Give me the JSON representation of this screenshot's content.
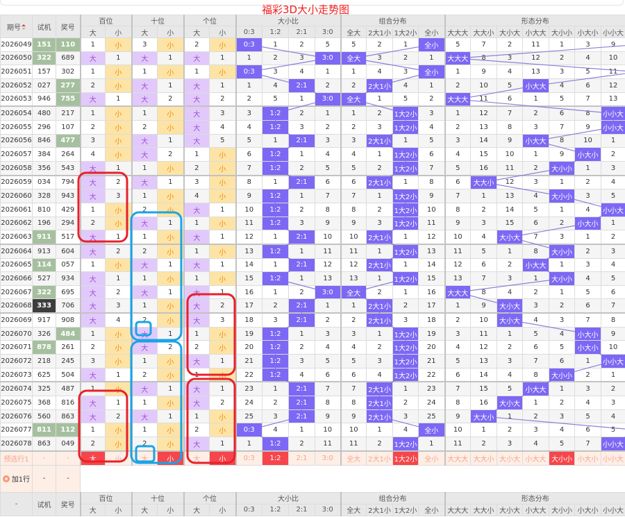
{
  "title": "福彩3D大小走势图",
  "colors": {
    "hit": "#7c68f4",
    "big_bg": "#e2c9fb",
    "small_bg": "#fde4a6",
    "repeat": "#a6c09f",
    "triple": "#3d3d3d",
    "selected": "#f6464b",
    "trend_line": "#8a80d8",
    "annot_red": "#e8202a",
    "annot_blue": "#1aa3e8"
  },
  "header": {
    "period": "期号",
    "sort_icon": "sort-asc-icon",
    "test": "试机",
    "draw": "奖号",
    "groups": [
      "百位",
      "十位",
      "个位",
      "大小比",
      "组合分布",
      "形态分布"
    ],
    "pos_sub": [
      "大",
      "小",
      "大",
      "小",
      "大",
      "小"
    ],
    "ratio_sub": [
      "0:3",
      "1:2",
      "2:1",
      "3:0"
    ],
    "combo_sub": [
      "全大",
      "2大1小",
      "1大2小",
      "全小"
    ],
    "form_sub": [
      "大大大",
      "大大小",
      "大小大",
      "小大大",
      "大小小",
      "小大小",
      "小小大"
    ]
  },
  "rows": [
    {
      "period": "2026049",
      "test": "151",
      "test_style": "repeat",
      "draw": "110",
      "draw_style": "repeat",
      "pos": [
        "1",
        "小",
        "3",
        "小",
        "2",
        "小"
      ],
      "ratio": [
        "0:3",
        "1",
        "2",
        "5"
      ],
      "combo": [
        "5",
        "2",
        "1",
        "全小"
      ],
      "form": [
        "5",
        "7",
        "2",
        "11",
        "1",
        "3",
        "9"
      ]
    },
    {
      "period": "2026050",
      "test": "322",
      "test_style": "repeat",
      "draw": "689",
      "draw_style": "",
      "pos": [
        "大",
        "1",
        "大",
        "1",
        "大",
        "1"
      ],
      "ratio": [
        "1",
        "2",
        "3",
        "3:0"
      ],
      "combo": [
        "全大",
        "3",
        "2",
        "1"
      ],
      "form": [
        "大大大",
        "8",
        "3",
        "12",
        "2",
        "4",
        "10"
      ]
    },
    {
      "period": "2026051",
      "test": "157",
      "test_style": "",
      "draw": "302",
      "draw_style": "",
      "pos": [
        "1",
        "小",
        "1",
        "小",
        "1",
        "小"
      ],
      "ratio": [
        "0:3",
        "3",
        "4",
        "1"
      ],
      "combo": [
        "1",
        "4",
        "3",
        "全小"
      ],
      "form": [
        "1",
        "9",
        "4",
        "13",
        "3",
        "5",
        "11"
      ]
    },
    {
      "period": "2026052",
      "test": "027",
      "test_style": "",
      "draw": "277",
      "draw_style": "repeat",
      "pos": [
        "2",
        "小",
        "大",
        "1",
        "大",
        "1"
      ],
      "ratio": [
        "1",
        "4",
        "2:1",
        "2"
      ],
      "combo": [
        "2",
        "2大1小",
        "4",
        "1"
      ],
      "form": [
        "2",
        "10",
        "5",
        "小大大",
        "4",
        "6",
        "12"
      ]
    },
    {
      "period": "2026053",
      "test": "946",
      "test_style": "",
      "draw": "755",
      "draw_style": "repeat",
      "pos": [
        "大",
        "1",
        "大",
        "2",
        "大",
        "2"
      ],
      "ratio": [
        "2",
        "5",
        "1",
        "3:0"
      ],
      "combo": [
        "全大",
        "1",
        "5",
        "2"
      ],
      "form": [
        "大大大",
        "11",
        "6",
        "1",
        "5",
        "7",
        "13"
      ]
    },
    {
      "period": "2026054",
      "test": "480",
      "test_style": "",
      "draw": "217",
      "draw_style": "",
      "pos": [
        "1",
        "小",
        "1",
        "小",
        "大",
        "3"
      ],
      "ratio": [
        "3",
        "1:2",
        "2",
        "1"
      ],
      "combo": [
        "1",
        "2",
        "1大2小",
        "3"
      ],
      "form": [
        "1",
        "12",
        "7",
        "2",
        "6",
        "8",
        "小小大"
      ]
    },
    {
      "period": "2026055",
      "test": "296",
      "test_style": "",
      "draw": "107",
      "draw_style": "",
      "pos": [
        "2",
        "小",
        "2",
        "小",
        "大",
        "4"
      ],
      "ratio": [
        "4",
        "1:2",
        "3",
        "2"
      ],
      "combo": [
        "2",
        "3",
        "1大2小",
        "4"
      ],
      "form": [
        "2",
        "13",
        "8",
        "3",
        "7",
        "9",
        "小小大"
      ]
    },
    {
      "period": "2026056",
      "test": "846",
      "test_style": "",
      "draw": "477",
      "draw_style": "repeat",
      "pos": [
        "3",
        "小",
        "大",
        "1",
        "大",
        "5"
      ],
      "ratio": [
        "5",
        "1",
        "2:1",
        "3"
      ],
      "combo": [
        "3",
        "2大1小",
        "1",
        "5"
      ],
      "form": [
        "3",
        "14",
        "9",
        "小大大",
        "8",
        "10",
        "1"
      ]
    },
    {
      "period": "2026057",
      "test": "384",
      "test_style": "",
      "draw": "264",
      "draw_style": "",
      "pos": [
        "4",
        "小",
        "大",
        "2",
        "1",
        "小"
      ],
      "ratio": [
        "6",
        "1:2",
        "1",
        "4"
      ],
      "combo": [
        "4",
        "1",
        "1大2小",
        "6"
      ],
      "form": [
        "4",
        "15",
        "10",
        "1",
        "9",
        "小大小",
        "2"
      ]
    },
    {
      "period": "2026058",
      "test": "356",
      "test_style": "",
      "draw": "543",
      "draw_style": "",
      "pos": [
        "大",
        "1",
        "1",
        "小",
        "2",
        "小"
      ],
      "ratio": [
        "7",
        "1:2",
        "2",
        "5"
      ],
      "combo": [
        "5",
        "2",
        "1大2小",
        "7"
      ],
      "form": [
        "5",
        "16",
        "11",
        "2",
        "大小小",
        "1",
        "3"
      ]
    },
    {
      "period": "2026059",
      "test": "034",
      "test_style": "",
      "draw": "794",
      "draw_style": "",
      "pos": [
        "大",
        "2",
        "大",
        "1",
        "3",
        "小"
      ],
      "ratio": [
        "8",
        "1",
        "2:1",
        "6"
      ],
      "combo": [
        "6",
        "2大1小",
        "1",
        "8"
      ],
      "form": [
        "6",
        "大大小",
        "12",
        "3",
        "1",
        "2",
        "4"
      ]
    },
    {
      "period": "2026060",
      "test": "328",
      "test_style": "",
      "draw": "943",
      "draw_style": "",
      "pos": [
        "大",
        "3",
        "1",
        "小",
        "4",
        "小"
      ],
      "ratio": [
        "9",
        "1:2",
        "1",
        "7"
      ],
      "combo": [
        "7",
        "1",
        "1大2小",
        "9"
      ],
      "form": [
        "7",
        "1",
        "13",
        "4",
        "大小小",
        "3",
        "5"
      ]
    },
    {
      "period": "2026061",
      "test": "810",
      "test_style": "",
      "draw": "429",
      "draw_style": "",
      "pos": [
        "1",
        "小",
        "2",
        "小",
        "大",
        "1"
      ],
      "ratio": [
        "10",
        "1:2",
        "2",
        "8"
      ],
      "combo": [
        "8",
        "2",
        "1大2小",
        "10"
      ],
      "form": [
        "8",
        "2",
        "14",
        "5",
        "1",
        "4",
        "小小大"
      ]
    },
    {
      "period": "2026062",
      "test": "196",
      "test_style": "",
      "draw": "294",
      "draw_style": "",
      "pos": [
        "2",
        "小",
        "大",
        "1",
        "1",
        "小"
      ],
      "ratio": [
        "11",
        "1:2",
        "3",
        "9"
      ],
      "combo": [
        "9",
        "3",
        "1大2小",
        "11"
      ],
      "form": [
        "9",
        "3",
        "15",
        "6",
        "2",
        "小大小",
        "1"
      ]
    },
    {
      "period": "2026063",
      "test": "911",
      "test_style": "repeat",
      "draw": "517",
      "draw_style": "",
      "pos": [
        "大",
        "1",
        "1",
        "小",
        "大",
        "1"
      ],
      "ratio": [
        "12",
        "1",
        "2:1",
        "10"
      ],
      "combo": [
        "10",
        "2大1小",
        "1",
        "12"
      ],
      "form": [
        "10",
        "4",
        "大小大",
        "7",
        "3",
        "1",
        "2"
      ]
    },
    {
      "period": "2026064",
      "test": "913",
      "test_style": "",
      "draw": "604",
      "draw_style": "",
      "pos": [
        "大",
        "2",
        "2",
        "小",
        "1",
        "小"
      ],
      "ratio": [
        "13",
        "1:2",
        "1",
        "11"
      ],
      "combo": [
        "11",
        "1",
        "1大2小",
        "13"
      ],
      "form": [
        "11",
        "5",
        "1",
        "8",
        "大小小",
        "2",
        "3"
      ]
    },
    {
      "period": "2026065",
      "test": "114",
      "test_style": "repeat",
      "draw": "057",
      "draw_style": "",
      "pos": [
        "1",
        "小",
        "大",
        "1",
        "大",
        "1"
      ],
      "ratio": [
        "14",
        "1",
        "2:1",
        "12"
      ],
      "combo": [
        "12",
        "2大1小",
        "1",
        "14"
      ],
      "form": [
        "12",
        "6",
        "2",
        "小大大",
        "1",
        "3",
        "4"
      ]
    },
    {
      "period": "2026066",
      "test": "527",
      "test_style": "",
      "draw": "934",
      "draw_style": "",
      "pos": [
        "大",
        "1",
        "1",
        "小",
        "1",
        "小"
      ],
      "ratio": [
        "15",
        "1:2",
        "1",
        "13"
      ],
      "combo": [
        "13",
        "1",
        "1大2小",
        "15"
      ],
      "form": [
        "13",
        "7",
        "3",
        "1",
        "大小小",
        "4",
        "5"
      ]
    },
    {
      "period": "2026067",
      "test": "322",
      "test_style": "repeat",
      "draw": "695",
      "draw_style": "",
      "pos": [
        "大",
        "2",
        "大",
        "1",
        "大",
        "1"
      ],
      "ratio": [
        "16",
        "1",
        "2",
        "3:0"
      ],
      "combo": [
        "全大",
        "2",
        "1",
        "16"
      ],
      "form": [
        "大大大",
        "8",
        "4",
        "2",
        "1",
        "5",
        "6"
      ]
    },
    {
      "period": "2026068",
      "test": "333",
      "test_style": "triple",
      "draw": "706",
      "draw_style": "",
      "pos": [
        "大",
        "3",
        "1",
        "小",
        "大",
        "2"
      ],
      "ratio": [
        "17",
        "2",
        "2:1",
        "1"
      ],
      "combo": [
        "1",
        "2大1小",
        "2",
        "17"
      ],
      "form": [
        "1",
        "9",
        "大小大",
        "3",
        "2",
        "6",
        "7"
      ]
    },
    {
      "period": "2026069",
      "test": "917",
      "test_style": "",
      "draw": "908",
      "draw_style": "",
      "pos": [
        "大",
        "4",
        "2",
        "小",
        "大",
        "3"
      ],
      "ratio": [
        "18",
        "3",
        "2:1",
        "2"
      ],
      "combo": [
        "2",
        "2大1小",
        "3",
        "18"
      ],
      "form": [
        "2",
        "10",
        "大小大",
        "4",
        "3",
        "7",
        "8"
      ]
    },
    {
      "period": "2026070",
      "test": "326",
      "test_style": "",
      "draw": "484",
      "draw_style": "repeat",
      "pos": [
        "1",
        "小",
        "大",
        "1",
        "1",
        "小"
      ],
      "ratio": [
        "19",
        "1:2",
        "1",
        "3"
      ],
      "combo": [
        "3",
        "1",
        "1大2小",
        "19"
      ],
      "form": [
        "3",
        "11",
        "1",
        "5",
        "4",
        "小大小",
        "9"
      ]
    },
    {
      "period": "2026071",
      "test": "878",
      "test_style": "repeat",
      "draw": "261",
      "draw_style": "",
      "pos": [
        "2",
        "小",
        "大",
        "2",
        "2",
        "小"
      ],
      "ratio": [
        "20",
        "1:2",
        "2",
        "4"
      ],
      "combo": [
        "4",
        "2",
        "1大2小",
        "20"
      ],
      "form": [
        "4",
        "12",
        "2",
        "6",
        "5",
        "小大小",
        "10"
      ]
    },
    {
      "period": "2026072",
      "test": "218",
      "test_style": "",
      "draw": "245",
      "draw_style": "",
      "pos": [
        "3",
        "小",
        "1",
        "小",
        "大",
        "1"
      ],
      "ratio": [
        "21",
        "1:2",
        "3",
        "5"
      ],
      "combo": [
        "5",
        "3",
        "1大2小",
        "21"
      ],
      "form": [
        "5",
        "13",
        "3",
        "7",
        "6",
        "1",
        "小小大"
      ]
    },
    {
      "period": "2026073",
      "test": "625",
      "test_style": "",
      "draw": "504",
      "draw_style": "",
      "pos": [
        "大",
        "1",
        "2",
        "小",
        "1",
        "小"
      ],
      "ratio": [
        "22",
        "1:2",
        "4",
        "6"
      ],
      "combo": [
        "6",
        "4",
        "1大2小",
        "22"
      ],
      "form": [
        "6",
        "14",
        "4",
        "8",
        "大小小",
        "2",
        "1"
      ]
    },
    {
      "period": "2026074",
      "test": "325",
      "test_style": "",
      "draw": "487",
      "draw_style": "",
      "pos": [
        "1",
        "小",
        "大",
        "1",
        "大",
        "1"
      ],
      "ratio": [
        "23",
        "1",
        "2:1",
        "7"
      ],
      "combo": [
        "7",
        "2大1小",
        "1",
        "23"
      ],
      "form": [
        "7",
        "15",
        "5",
        "小大大",
        "1",
        "3",
        "2"
      ]
    },
    {
      "period": "2026075",
      "test": "368",
      "test_style": "",
      "draw": "816",
      "draw_style": "",
      "pos": [
        "大",
        "1",
        "1",
        "小",
        "大",
        "2"
      ],
      "ratio": [
        "24",
        "2",
        "2:1",
        "8"
      ],
      "combo": [
        "8",
        "2大1小",
        "2",
        "24"
      ],
      "form": [
        "8",
        "16",
        "大小大",
        "1",
        "2",
        "4",
        "3"
      ]
    },
    {
      "period": "2026076",
      "test": "560",
      "test_style": "",
      "draw": "863",
      "draw_style": "",
      "pos": [
        "大",
        "2",
        "大",
        "1",
        "1",
        "小"
      ],
      "ratio": [
        "25",
        "3",
        "2:1",
        "9"
      ],
      "combo": [
        "9",
        "2大1小",
        "3",
        "25"
      ],
      "form": [
        "9",
        "大大小",
        "1",
        "2",
        "3",
        "5",
        "4"
      ]
    },
    {
      "period": "2026077",
      "test": "811",
      "test_style": "repeat",
      "draw": "112",
      "draw_style": "repeat",
      "pos": [
        "1",
        "小",
        "1",
        "小",
        "2",
        "小"
      ],
      "ratio": [
        "0:3",
        "4",
        "1",
        "10"
      ],
      "combo": [
        "10",
        "1",
        "4",
        "全小"
      ],
      "form": [
        "10",
        "1",
        "2",
        "3",
        "4",
        "6",
        "5"
      ]
    },
    {
      "period": "2026078",
      "test": "863",
      "test_style": "",
      "draw": "049",
      "draw_style": "",
      "pos": [
        "2",
        "小",
        "2",
        "小",
        "大",
        "1"
      ],
      "ratio": [
        "1",
        "1:2",
        "2",
        "11"
      ],
      "combo": [
        "11",
        "2",
        "1大2小",
        "1"
      ],
      "form": [
        "11",
        "2",
        "3",
        "4",
        "5",
        "7",
        "小小大"
      ]
    }
  ],
  "preselect": {
    "label": "预选行1",
    "test": "-",
    "draw": "-",
    "pos": [
      "大",
      "小",
      "大",
      "小",
      "大",
      "小"
    ],
    "pos_selected": [
      true,
      false,
      false,
      true,
      false,
      true
    ],
    "ratio": [
      "0:3",
      "1:2",
      "2:1",
      "3:0"
    ],
    "ratio_selected": [
      false,
      true,
      false,
      false
    ],
    "combo": [
      "全大",
      "2大1小",
      "1大2小",
      "全小"
    ],
    "combo_selected": [
      false,
      false,
      true,
      false
    ],
    "form": [
      "大大大",
      "大大小",
      "大小大",
      "小大大",
      "大小小",
      "小大小",
      "小小大"
    ],
    "form_selected": [
      false,
      false,
      false,
      false,
      true,
      false,
      false
    ]
  },
  "add_row": {
    "label": "加1行",
    "icon": "add-circle-icon",
    "test": "-",
    "draw": "-"
  },
  "footer": {
    "period": "-",
    "test": "试机",
    "draw": "奖号"
  }
}
